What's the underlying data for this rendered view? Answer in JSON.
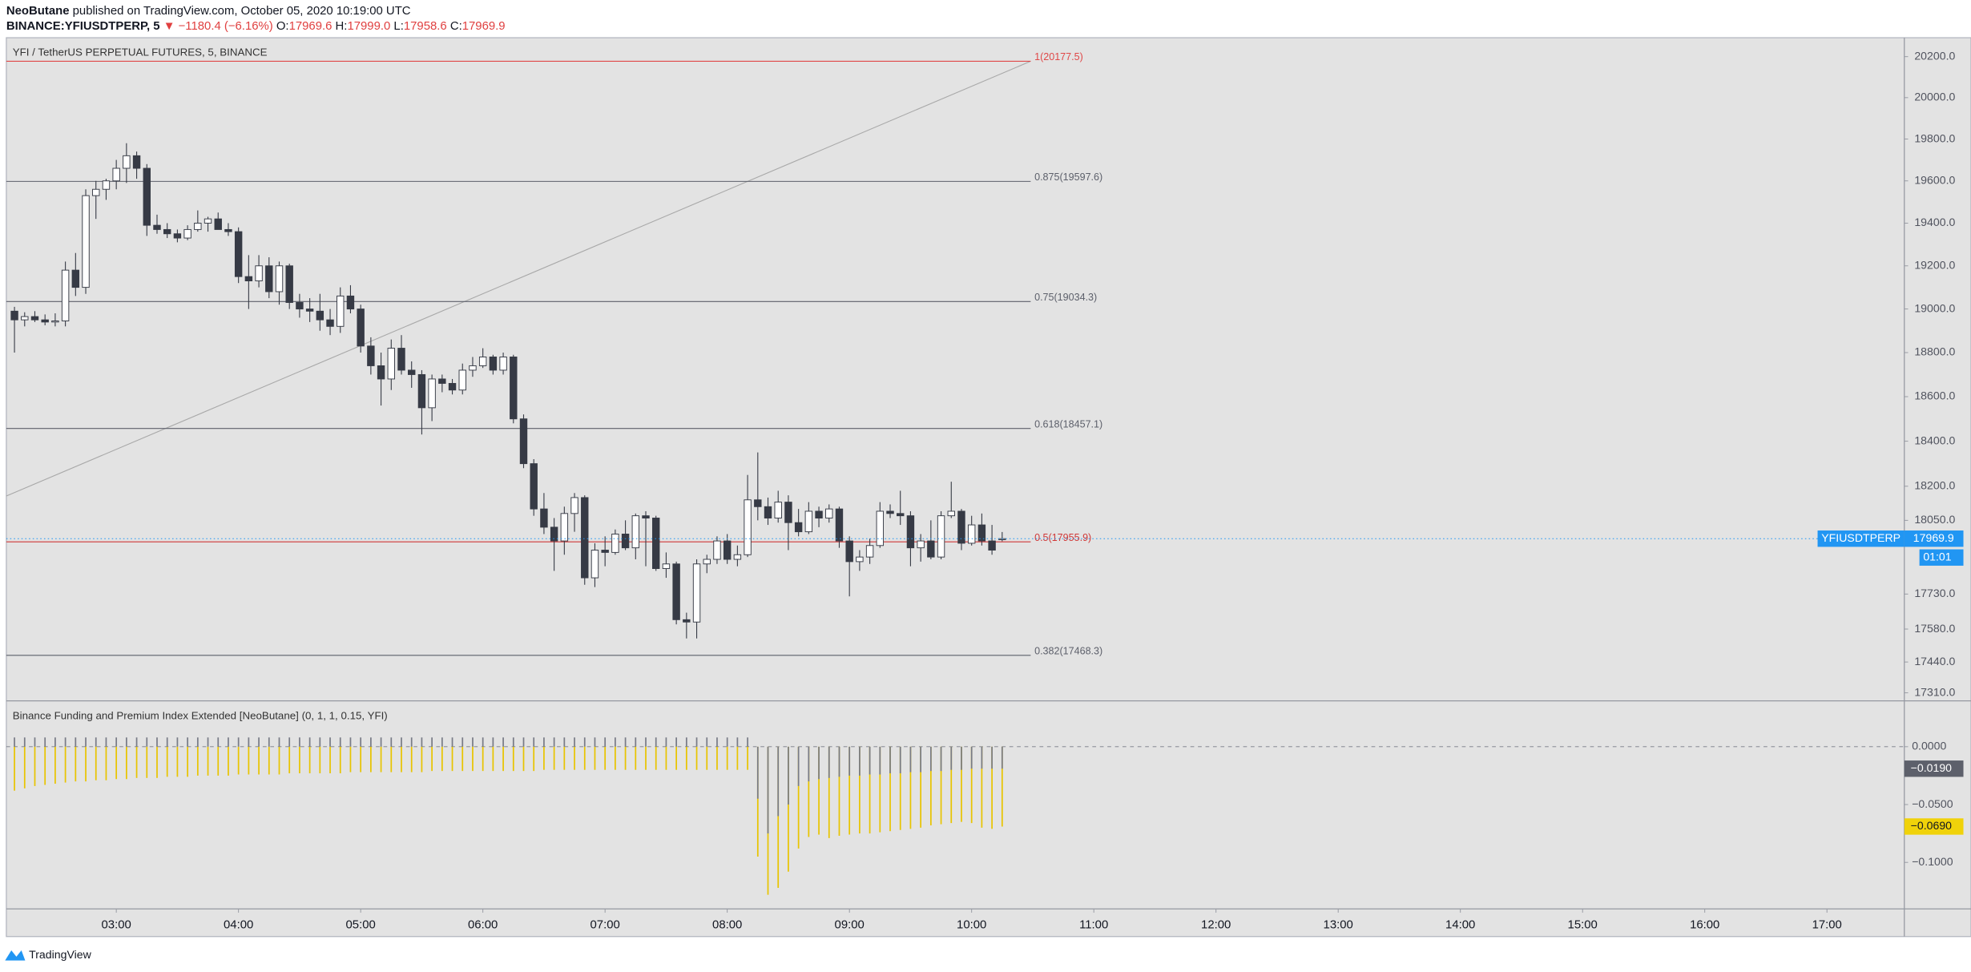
{
  "header": {
    "author": "NeoButane",
    "published": "published on TradingView.com, October 05, 2020 10:19:00 UTC",
    "symbol": "BINANCE:YFIUSDTPERP, 5",
    "change": "▼ −1180.4 (−6.16%)",
    "ohlc": [
      {
        "key": "O:",
        "value": "17969.6"
      },
      {
        "key": "H:",
        "value": "17999.0"
      },
      {
        "key": "L:",
        "value": "17958.6"
      },
      {
        "key": "C:",
        "value": "17969.9"
      }
    ]
  },
  "footer": {
    "brand": "TradingView"
  },
  "chart_data": [
    {
      "type": "candlestick",
      "legend": "YFI / TetherUS PERPETUAL FUTURES, 5, BINANCE",
      "symbol_tag": "YFIUSDTPERP",
      "countdown": "01:01",
      "log_scale": true,
      "grid": false,
      "up_color": "#ffffff",
      "down_color": "#363a45",
      "wick_color": "#363a45",
      "price_line_color": "#2196f3",
      "x": [
        130,
        135,
        140,
        145,
        150,
        155,
        160,
        165,
        170,
        175,
        180,
        185,
        190,
        195,
        200,
        205,
        210,
        215,
        220,
        225,
        230,
        235,
        240,
        245,
        250,
        255,
        260,
        265,
        270,
        275,
        280,
        285,
        290,
        295,
        300,
        305,
        310,
        315,
        320,
        325,
        330,
        335,
        340,
        345,
        350,
        355,
        360,
        365,
        370,
        375,
        380,
        385,
        390,
        395,
        400,
        405,
        410,
        415,
        420,
        425,
        430,
        435,
        440,
        445,
        450,
        455,
        460,
        465,
        470,
        475,
        480,
        485,
        490,
        495,
        500,
        505,
        510,
        515,
        520,
        525,
        530,
        535,
        540,
        545,
        550,
        555,
        560,
        565,
        570,
        575,
        580,
        585,
        590,
        595,
        600,
        605,
        610,
        615
      ],
      "open": [
        18990,
        18950,
        18965,
        18950,
        18940,
        18945,
        19180,
        19100,
        19530,
        19560,
        19600,
        19660,
        19720,
        19660,
        19390,
        19370,
        19350,
        19330,
        19370,
        19400,
        19420,
        19370,
        19360,
        19150,
        19130,
        19200,
        19080,
        19200,
        19030,
        19000,
        18990,
        18950,
        18920,
        19060,
        19000,
        18830,
        18740,
        18680,
        18820,
        18720,
        18700,
        18550,
        18680,
        18660,
        18630,
        18720,
        18740,
        18780,
        18720,
        18780,
        18500,
        18300,
        18100,
        18020,
        17960,
        18080,
        18150,
        17800,
        17920,
        17910,
        17990,
        17930,
        18070,
        18060,
        17840,
        17860,
        17620,
        17610,
        17860,
        17880,
        17960,
        17880,
        17900,
        18140,
        18110,
        18060,
        18130,
        18040,
        18000,
        18090,
        18060,
        18100,
        17960,
        17870,
        17890,
        17940,
        18090,
        18080,
        18070,
        17930,
        17960,
        17890,
        18070,
        18090,
        17950,
        18030,
        17960,
        17969.6
      ],
      "high": [
        19010,
        18985,
        18990,
        18975,
        18980,
        19220,
        19260,
        19560,
        19600,
        19610,
        19700,
        19780,
        19740,
        19680,
        19440,
        19400,
        19370,
        19390,
        19460,
        19430,
        19450,
        19400,
        19380,
        19250,
        19250,
        19240,
        19220,
        19210,
        19070,
        19050,
        19070,
        19000,
        19100,
        19110,
        19020,
        18870,
        18800,
        18860,
        18880,
        18760,
        18720,
        18700,
        18700,
        18680,
        18750,
        18780,
        18820,
        18790,
        18800,
        18790,
        18520,
        18320,
        18170,
        18060,
        18110,
        18170,
        18160,
        17950,
        17980,
        18010,
        18050,
        18080,
        18090,
        18070,
        17910,
        17870,
        17650,
        17880,
        17900,
        17980,
        17990,
        17940,
        18250,
        18350,
        18150,
        18180,
        18160,
        18100,
        18130,
        18110,
        18120,
        18110,
        17980,
        17920,
        17970,
        18130,
        18120,
        18180,
        18090,
        17990,
        18050,
        18090,
        18220,
        18100,
        18070,
        18080,
        18030,
        17999
      ],
      "low": [
        18800,
        18920,
        18940,
        18925,
        18920,
        18920,
        19060,
        19070,
        19420,
        19510,
        19560,
        19590,
        19610,
        19340,
        19350,
        19330,
        19310,
        19320,
        19360,
        19360,
        19370,
        19340,
        19120,
        19000,
        19100,
        19050,
        19020,
        19000,
        18960,
        18940,
        18900,
        18880,
        18890,
        18980,
        18800,
        18700,
        18560,
        18630,
        18700,
        18640,
        18430,
        18490,
        18620,
        18610,
        18610,
        18690,
        18730,
        18700,
        18700,
        18480,
        18280,
        18070,
        17990,
        17830,
        17900,
        18000,
        17770,
        17760,
        17850,
        17900,
        17920,
        17880,
        17850,
        17830,
        17800,
        17600,
        17540,
        17540,
        17820,
        17860,
        17860,
        17850,
        17890,
        18050,
        18030,
        18040,
        17920,
        17980,
        17990,
        18020,
        18040,
        17930,
        17720,
        17830,
        17860,
        17930,
        18060,
        18030,
        17850,
        17870,
        17880,
        17880,
        18060,
        17920,
        17940,
        17940,
        17900,
        17958.6
      ],
      "close": [
        18950,
        18965,
        18950,
        18940,
        18945,
        19180,
        19100,
        19530,
        19560,
        19600,
        19660,
        19720,
        19660,
        19390,
        19370,
        19350,
        19330,
        19370,
        19400,
        19420,
        19370,
        19360,
        19150,
        19130,
        19200,
        19080,
        19200,
        19030,
        19000,
        18990,
        18950,
        18920,
        19060,
        19000,
        18830,
        18740,
        18680,
        18820,
        18720,
        18700,
        18550,
        18680,
        18660,
        18630,
        18720,
        18740,
        18780,
        18720,
        18780,
        18500,
        18300,
        18100,
        18020,
        17960,
        18080,
        18150,
        17800,
        17920,
        17910,
        17990,
        17930,
        18070,
        18060,
        17840,
        17860,
        17620,
        17610,
        17860,
        17880,
        17960,
        17880,
        17900,
        18140,
        18110,
        18060,
        18130,
        18040,
        18000,
        18090,
        18060,
        18100,
        17960,
        17870,
        17890,
        17940,
        18090,
        18080,
        18070,
        17930,
        17960,
        17890,
        18070,
        18090,
        17950,
        18030,
        17960,
        17920,
        17969.9
      ],
      "fib": {
        "x": [
          126,
          629
        ],
        "levels": [
          {
            "value": 20177.5,
            "label": "1(20177.5)",
            "color": "#e04848"
          },
          {
            "value": 19597.6,
            "label": "0.875(19597.6)",
            "color": "#5d606b"
          },
          {
            "value": 19034.3,
            "label": "0.75(19034.3)",
            "color": "#5d606b"
          },
          {
            "value": 18457.1,
            "label": "0.618(18457.1)",
            "color": "#5d606b"
          },
          {
            "value": 17955.9,
            "label": "0.5(17955.9)",
            "color": "#d03838"
          },
          {
            "value": 17468.3,
            "label": "0.382(17468.3)",
            "color": "#5d606b"
          }
        ]
      },
      "trendline": {
        "x": [
          126,
          629
        ],
        "y": [
          18157,
          20177.5
        ],
        "color": "#a8a8a8"
      },
      "xlim": [
        126,
        1058
      ],
      "xticks": [
        {
          "value": 180,
          "label": "03:00"
        },
        {
          "value": 240,
          "label": "04:00"
        },
        {
          "value": 300,
          "label": "05:00"
        },
        {
          "value": 360,
          "label": "06:00"
        },
        {
          "value": 420,
          "label": "07:00"
        },
        {
          "value": 480,
          "label": "08:00"
        },
        {
          "value": 540,
          "label": "09:00"
        },
        {
          "value": 600,
          "label": "10:00"
        },
        {
          "value": 660,
          "label": "11:00"
        },
        {
          "value": 720,
          "label": "12:00"
        },
        {
          "value": 780,
          "label": "13:00"
        },
        {
          "value": 840,
          "label": "14:00"
        },
        {
          "value": 900,
          "label": "15:00"
        },
        {
          "value": 960,
          "label": "16:00"
        },
        {
          "value": 1020,
          "label": "17:00"
        }
      ],
      "ylim": [
        17279,
        20293
      ],
      "yticks": [
        {
          "value": 20200,
          "label": "20200.0"
        },
        {
          "value": 20000,
          "label": "20000.0"
        },
        {
          "value": 19800,
          "label": "19800.0"
        },
        {
          "value": 19600,
          "label": "19600.0"
        },
        {
          "value": 19400,
          "label": "19400.0"
        },
        {
          "value": 19200,
          "label": "19200.0"
        },
        {
          "value": 19000,
          "label": "19000.0"
        },
        {
          "value": 18800,
          "label": "18800.0"
        },
        {
          "value": 18600,
          "label": "18600.0"
        },
        {
          "value": 18400,
          "label": "18400.0"
        },
        {
          "value": 18200,
          "label": "18200.0"
        },
        {
          "value": 18050,
          "label": "18050.0"
        },
        {
          "value": 17730,
          "label": "17730.0"
        },
        {
          "value": 17580,
          "label": "17580.0"
        },
        {
          "value": 17440,
          "label": "17440.0"
        },
        {
          "value": 17310,
          "label": "17310.0"
        }
      ]
    },
    {
      "type": "column",
      "title": "Binance Funding and Premium Index Extended [NeoButane] (0, 1, 1, 0.15, YFI)",
      "ylim": [
        -0.1402,
        0.0391
      ],
      "yticks": [
        {
          "value": 0,
          "label": "0.0000"
        },
        {
          "value": -0.05,
          "label": "−0.0500"
        },
        {
          "value": -0.1,
          "label": "−0.1000"
        }
      ],
      "series": [
        {
          "color": "#787b86",
          "tag_text_color": "#ffffff",
          "tag_color": "#5d606b",
          "last_label": "−0.0190",
          "values": [
            0.008,
            0.008,
            0.008,
            0.008,
            0.008,
            0.008,
            0.008,
            0.008,
            0.008,
            0.008,
            0.008,
            0.008,
            0.008,
            0.008,
            0.008,
            0.008,
            0.008,
            0.008,
            0.008,
            0.008,
            0.008,
            0.008,
            0.008,
            0.008,
            0.008,
            0.008,
            0.008,
            0.008,
            0.008,
            0.008,
            0.008,
            0.008,
            0.008,
            0.008,
            0.008,
            0.008,
            0.008,
            0.008,
            0.008,
            0.008,
            0.008,
            0.008,
            0.008,
            0.008,
            0.008,
            0.008,
            0.008,
            0.008,
            0.008,
            0.008,
            0.008,
            0.008,
            0.008,
            0.008,
            0.008,
            0.008,
            0.008,
            0.008,
            0.008,
            0.008,
            0.008,
            0.008,
            0.008,
            0.008,
            0.008,
            0.008,
            0.008,
            0.008,
            0.008,
            0.008,
            0.008,
            0.008,
            0.008,
            -0.045,
            -0.075,
            -0.06,
            -0.05,
            -0.034,
            -0.03,
            -0.028,
            -0.027,
            -0.026,
            -0.025,
            -0.025,
            -0.024,
            -0.024,
            -0.023,
            -0.023,
            -0.022,
            -0.022,
            -0.021,
            -0.021,
            -0.02,
            -0.02,
            -0.019,
            -0.019,
            -0.019,
            -0.019
          ]
        },
        {
          "color": "#e8c400",
          "tag_text_color": "#131722",
          "tag_color": "#f0d20a",
          "last_label": "−0.0690",
          "values": [
            -0.038,
            -0.036,
            -0.034,
            -0.033,
            -0.032,
            -0.031,
            -0.03,
            -0.03,
            -0.029,
            -0.029,
            -0.028,
            -0.028,
            -0.027,
            -0.027,
            -0.027,
            -0.026,
            -0.026,
            -0.026,
            -0.025,
            -0.025,
            -0.025,
            -0.025,
            -0.024,
            -0.024,
            -0.024,
            -0.024,
            -0.024,
            -0.023,
            -0.023,
            -0.023,
            -0.023,
            -0.023,
            -0.023,
            -0.022,
            -0.022,
            -0.022,
            -0.022,
            -0.022,
            -0.022,
            -0.022,
            -0.022,
            -0.021,
            -0.021,
            -0.021,
            -0.021,
            -0.021,
            -0.021,
            -0.021,
            -0.021,
            -0.021,
            -0.021,
            -0.021,
            -0.02,
            -0.02,
            -0.02,
            -0.02,
            -0.02,
            -0.02,
            -0.02,
            -0.02,
            -0.02,
            -0.02,
            -0.02,
            -0.02,
            -0.02,
            -0.02,
            -0.02,
            -0.02,
            -0.02,
            -0.02,
            -0.02,
            -0.02,
            -0.02,
            -0.095,
            -0.128,
            -0.122,
            -0.108,
            -0.088,
            -0.078,
            -0.076,
            -0.079,
            -0.077,
            -0.076,
            -0.075,
            -0.075,
            -0.074,
            -0.073,
            -0.072,
            -0.071,
            -0.07,
            -0.068,
            -0.067,
            -0.066,
            -0.065,
            -0.066,
            -0.07,
            -0.071,
            -0.069
          ]
        }
      ]
    }
  ]
}
